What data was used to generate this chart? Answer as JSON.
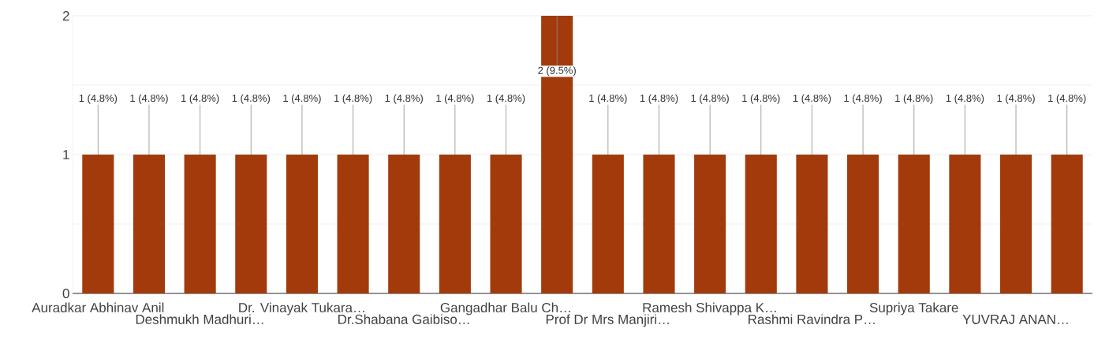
{
  "chart_data": {
    "type": "bar",
    "categories": [
      "Auradkar Abhinav Anil",
      null,
      "Deshmukh Madhuri…",
      null,
      "Dr. Vinayak Tukara…",
      null,
      "Dr.Shabana Gaibiso…",
      null,
      "Gangadhar Balu Ch…",
      null,
      "Prof Dr Mrs Manjiri…",
      null,
      "Ramesh Shivappa K…",
      null,
      "Rashmi Ravindra P…",
      null,
      "Supriya Takare",
      null,
      "YUVRAJ ANAN…",
      null
    ],
    "values": [
      1,
      1,
      1,
      1,
      1,
      1,
      1,
      1,
      1,
      2,
      1,
      1,
      1,
      1,
      1,
      1,
      1,
      1,
      1,
      1
    ],
    "value_labels": [
      "1 (4.8%)",
      "1 (4.8%)",
      "1 (4.8%)",
      "1 (4.8%)",
      "1 (4.8%)",
      "1 (4.8%)",
      "1 (4.8%)",
      "1 (4.8%)",
      "1 (4.8%)",
      "2 (9.5%)",
      "1 (4.8%)",
      "1 (4.8%)",
      "1 (4.8%)",
      "1 (4.8%)",
      "1 (4.8%)",
      "1 (4.8%)",
      "1 (4.8%)",
      "1 (4.8%)",
      "1 (4.8%)",
      "1 (4.8%)"
    ],
    "color": "#a33a0b",
    "ylim": [
      0,
      2
    ],
    "yticks": [
      0,
      {
        "value": 0.5,
        "label": null
      },
      1,
      {
        "value": 1.5,
        "label": null
      },
      2
    ],
    "grid": "y"
  }
}
